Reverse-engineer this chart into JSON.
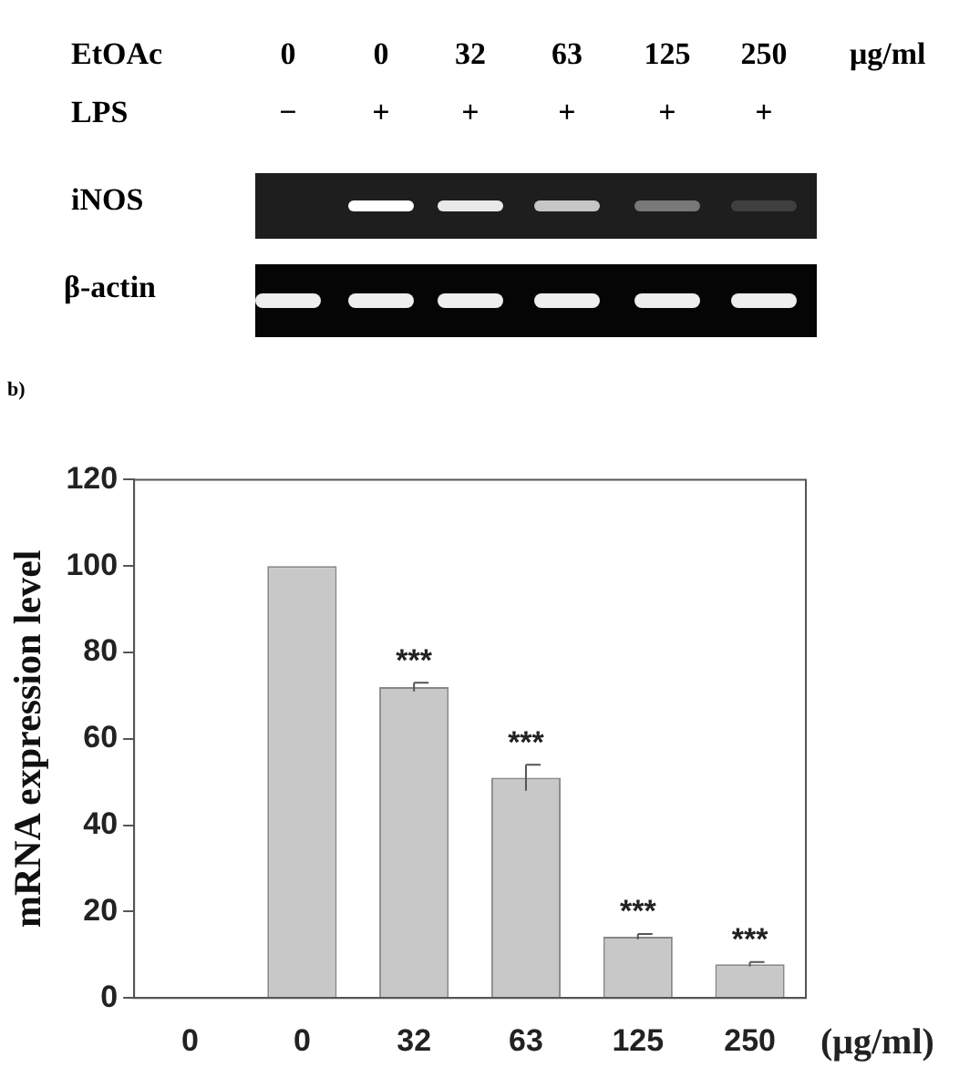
{
  "chart_data": {
    "type": "bar",
    "ylabel": "mRNA expression level",
    "xlabel": "(μg/ml)",
    "categories": [
      "0",
      "0",
      "32",
      "63",
      "125",
      "250"
    ],
    "values": [
      0,
      100,
      72,
      51,
      14.2,
      7.8
    ],
    "errors": [
      null,
      null,
      1,
      3,
      0.6,
      0.5
    ],
    "color": "#c8c8c8",
    "ylim": [
      0,
      120
    ],
    "yticks": [
      0,
      20,
      40,
      60,
      80,
      100,
      120
    ],
    "grid": false,
    "legend": false,
    "annotations": [
      "EtOAc",
      "μg/ml",
      "LPS",
      "−",
      "+",
      "+",
      "+",
      "+",
      "+",
      "iNOS",
      "β-actin",
      "b)",
      {
        "text": "***",
        "x": "32",
        "y": 72
      },
      {
        "text": "***",
        "x": "63",
        "y": 51
      },
      {
        "text": "***",
        "x": "125",
        "y": 14.2
      },
      {
        "text": "***",
        "x": "250",
        "y": 7.8
      }
    ]
  }
}
